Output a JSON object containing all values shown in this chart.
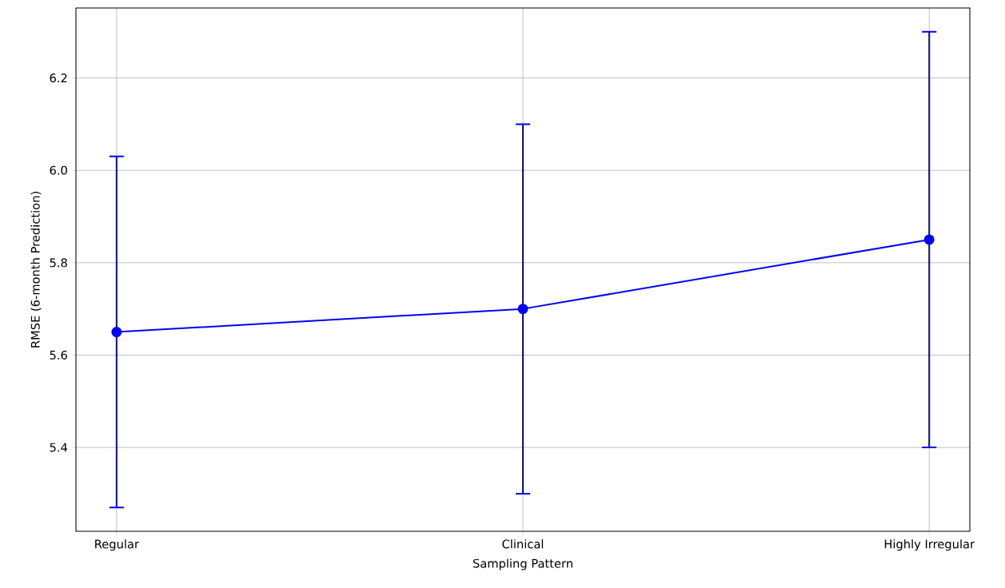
{
  "chart_data": {
    "type": "line",
    "xlabel": "Sampling Pattern",
    "ylabel": "RMSE (6-month Prediction)",
    "categories": [
      "Regular",
      "Clinical",
      "Highly Irregular"
    ],
    "series": [
      {
        "color": "#0000ff",
        "values": [
          5.65,
          5.7,
          5.85
        ],
        "errors": [
          0.38,
          0.4,
          0.45
        ]
      }
    ],
    "ylim": [
      5.2185,
      6.3515
    ],
    "yticks": [
      {
        "value": 5.4,
        "label": "5.4"
      },
      {
        "value": 5.6,
        "label": "5.6"
      },
      {
        "value": 5.8,
        "label": "5.8"
      },
      {
        "value": 6.0,
        "label": "6.0"
      },
      {
        "value": 6.2,
        "label": "6.2"
      }
    ],
    "grid": true,
    "marker": "circle",
    "line_style": "solid"
  }
}
